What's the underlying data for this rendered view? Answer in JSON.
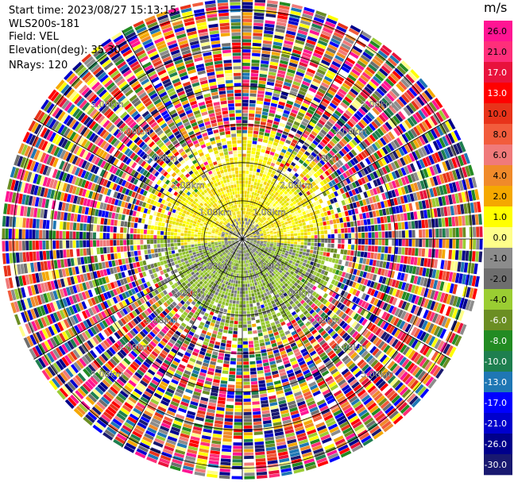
{
  "info": {
    "start_time": "Start time: 2023/08/27 15:13:15",
    "instrument": "WLS200s-181",
    "field": "Field: VEL",
    "elevation": "Elevation(deg): 35.30",
    "nrays": "NRays: 120"
  },
  "chart_data": {
    "type": "heatmap",
    "projection": "polar (PPI)",
    "field": "VEL",
    "units": "m/s",
    "range_rings_km": [
      1,
      2,
      3,
      4,
      5,
      6
    ],
    "ring_labels": [
      "1.00km",
      "2.00km",
      "3.00km",
      "4.00km",
      "5.00km"
    ],
    "max_range_km": 6.3,
    "nrays": 120,
    "colorbar": {
      "title": "m/s",
      "ticks": [
        "26.0",
        "21.0",
        "17.0",
        "13.0",
        "10.0",
        "8.0",
        "6.0",
        "4.0",
        "2.0",
        "1.0",
        "0.0",
        "-1.0",
        "-2.0",
        "-4.0",
        "-6.0",
        "-8.0",
        "-10.0",
        "-13.0",
        "-17.0",
        "-21.0",
        "-26.0",
        "-30.0"
      ],
      "colors": [
        "#ff1493",
        "#ff2e7a",
        "#e8123c",
        "#ff0000",
        "#e8331a",
        "#f25c3c",
        "#f07a7a",
        "#f08a2a",
        "#f5a800",
        "#ffff00",
        "#ffff8a",
        "#8c8c8c",
        "#6e6e6e",
        "#9acd32",
        "#6b8e23",
        "#228b22",
        "#1e7f4f",
        "#1f77b4",
        "#0000ff",
        "#0000cd",
        "#00008b",
        "#191970"
      ]
    },
    "inner_pattern": "near-range region (< ~2.7 km) dominated by yellow (+2 to +4 m/s) in the north, olive/green (-1 to -6 m/s) in the south, grey (~0 m/s) near the center; beyond ~2.7 km values are noisy across the full scale"
  }
}
